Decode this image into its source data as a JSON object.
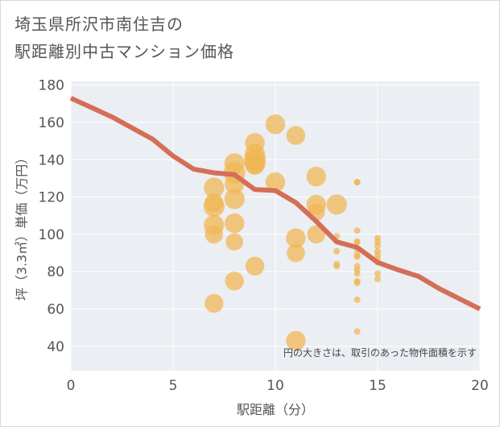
{
  "title": {
    "line1": "埼玉県所沢市南住吉の",
    "line2": "駅距離別中古マンション価格"
  },
  "chart_data": {
    "type": "scatter",
    "title": "埼玉県所沢市南住吉の駅距離別中古マンション価格",
    "xlabel": "駅距離（分）",
    "ylabel": "坪（3.3㎡）単価（万円）",
    "xlim": [
      0,
      20
    ],
    "ylim": [
      27,
      182
    ],
    "xticks": [
      0,
      5,
      10,
      15,
      20
    ],
    "yticks": [
      40,
      60,
      80,
      100,
      120,
      140,
      160,
      180
    ],
    "grid": true,
    "note": "円の大きさは、取引のあった物件面積を示す",
    "colors": {
      "bubble": "#f0b650",
      "line": "#d46e58",
      "plot_bg": "#ebeef3",
      "grid": "#ffffff"
    },
    "points": [
      {
        "x": 7,
        "y": 125,
        "s": 2.8
      },
      {
        "x": 7,
        "y": 117,
        "s": 2.6
      },
      {
        "x": 7,
        "y": 115,
        "s": 2.9
      },
      {
        "x": 7,
        "y": 105,
        "s": 2.8
      },
      {
        "x": 7,
        "y": 100,
        "s": 2.5
      },
      {
        "x": 7,
        "y": 63,
        "s": 2.6
      },
      {
        "x": 8,
        "y": 138,
        "s": 2.8
      },
      {
        "x": 8,
        "y": 133,
        "s": 3.0
      },
      {
        "x": 8,
        "y": 127,
        "s": 2.7
      },
      {
        "x": 8,
        "y": 119,
        "s": 2.8
      },
      {
        "x": 8,
        "y": 106,
        "s": 2.7
      },
      {
        "x": 8,
        "y": 96,
        "s": 2.4
      },
      {
        "x": 8,
        "y": 75,
        "s": 2.6
      },
      {
        "x": 9,
        "y": 149,
        "s": 2.7
      },
      {
        "x": 9,
        "y": 143,
        "s": 2.8
      },
      {
        "x": 9,
        "y": 140,
        "s": 3.0
      },
      {
        "x": 9,
        "y": 138,
        "s": 2.9
      },
      {
        "x": 9,
        "y": 137,
        "s": 2.6
      },
      {
        "x": 9,
        "y": 83,
        "s": 2.6
      },
      {
        "x": 10,
        "y": 159,
        "s": 2.7
      },
      {
        "x": 10,
        "y": 128,
        "s": 2.7
      },
      {
        "x": 11,
        "y": 153,
        "s": 2.6
      },
      {
        "x": 11,
        "y": 98,
        "s": 2.7
      },
      {
        "x": 11,
        "y": 90,
        "s": 2.5
      },
      {
        "x": 11,
        "y": 43,
        "s": 2.7
      },
      {
        "x": 12,
        "y": 131,
        "s": 2.7
      },
      {
        "x": 12,
        "y": 116,
        "s": 2.7
      },
      {
        "x": 12,
        "y": 112,
        "s": 2.4
      },
      {
        "x": 12,
        "y": 100,
        "s": 2.5
      },
      {
        "x": 13,
        "y": 116,
        "s": 2.8
      },
      {
        "x": 13,
        "y": 99,
        "s": 0.9
      },
      {
        "x": 13,
        "y": 91,
        "s": 0.9
      },
      {
        "x": 13,
        "y": 84,
        "s": 0.9
      },
      {
        "x": 13,
        "y": 83,
        "s": 0.9
      },
      {
        "x": 14,
        "y": 128,
        "s": 0.9
      },
      {
        "x": 14,
        "y": 128,
        "s": 0.9
      },
      {
        "x": 14,
        "y": 102,
        "s": 0.9
      },
      {
        "x": 14,
        "y": 96,
        "s": 0.9
      },
      {
        "x": 14,
        "y": 96,
        "s": 0.9
      },
      {
        "x": 14,
        "y": 92,
        "s": 0.9
      },
      {
        "x": 14,
        "y": 89,
        "s": 0.9
      },
      {
        "x": 14,
        "y": 88,
        "s": 0.9
      },
      {
        "x": 14,
        "y": 83,
        "s": 0.9
      },
      {
        "x": 14,
        "y": 81,
        "s": 0.9
      },
      {
        "x": 14,
        "y": 79,
        "s": 0.9
      },
      {
        "x": 14,
        "y": 75,
        "s": 0.9
      },
      {
        "x": 14,
        "y": 74,
        "s": 0.9
      },
      {
        "x": 14,
        "y": 65,
        "s": 0.9
      },
      {
        "x": 14,
        "y": 48,
        "s": 0.9
      },
      {
        "x": 15,
        "y": 98,
        "s": 0.9
      },
      {
        "x": 15,
        "y": 96,
        "s": 0.9
      },
      {
        "x": 15,
        "y": 94,
        "s": 0.9
      },
      {
        "x": 15,
        "y": 91,
        "s": 0.9
      },
      {
        "x": 15,
        "y": 89,
        "s": 0.9
      },
      {
        "x": 15,
        "y": 87,
        "s": 0.9
      },
      {
        "x": 15,
        "y": 85,
        "s": 0.9
      },
      {
        "x": 15,
        "y": 79,
        "s": 0.9
      },
      {
        "x": 15,
        "y": 76,
        "s": 0.9
      }
    ],
    "trend": [
      {
        "x": 0,
        "y": 173
      },
      {
        "x": 1,
        "y": 168
      },
      {
        "x": 2,
        "y": 163
      },
      {
        "x": 3,
        "y": 157
      },
      {
        "x": 4,
        "y": 151
      },
      {
        "x": 5,
        "y": 142
      },
      {
        "x": 6,
        "y": 135
      },
      {
        "x": 7,
        "y": 133
      },
      {
        "x": 8,
        "y": 132
      },
      {
        "x": 9,
        "y": 124
      },
      {
        "x": 10,
        "y": 123.5
      },
      {
        "x": 11,
        "y": 117
      },
      {
        "x": 12,
        "y": 107
      },
      {
        "x": 13,
        "y": 96
      },
      {
        "x": 14,
        "y": 93
      },
      {
        "x": 15,
        "y": 85
      },
      {
        "x": 16,
        "y": 81
      },
      {
        "x": 17,
        "y": 77.5
      },
      {
        "x": 18,
        "y": 71
      },
      {
        "x": 19,
        "y": 65.5
      },
      {
        "x": 20,
        "y": 60
      }
    ]
  }
}
